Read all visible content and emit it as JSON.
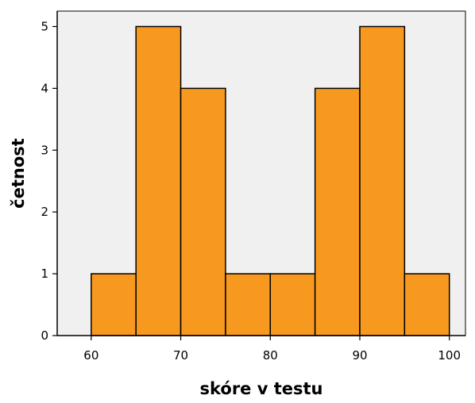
{
  "chart_data": {
    "type": "bar",
    "subtype": "histogram",
    "xlabel": "skóre v testu",
    "ylabel": "četnost",
    "bins": [
      {
        "from": 60,
        "to": 65,
        "count": 1
      },
      {
        "from": 65,
        "to": 70,
        "count": 5
      },
      {
        "from": 70,
        "to": 75,
        "count": 4
      },
      {
        "from": 75,
        "to": 80,
        "count": 1
      },
      {
        "from": 80,
        "to": 85,
        "count": 1
      },
      {
        "from": 85,
        "to": 90,
        "count": 4
      },
      {
        "from": 90,
        "to": 95,
        "count": 5
      },
      {
        "from": 95,
        "to": 100,
        "count": 1
      }
    ],
    "xlim": [
      56.2,
      101.8
    ],
    "ylim": [
      0,
      5.25
    ],
    "xticks": [
      "60",
      "70",
      "80",
      "90",
      "100"
    ],
    "yticks": [
      "0",
      "1",
      "2",
      "3",
      "4",
      "5"
    ],
    "colors": {
      "bar_fill": "#f7991f",
      "bar_stroke": "#000000",
      "plot_background": "#f0f0f0"
    },
    "grid": false,
    "legend": "none"
  }
}
